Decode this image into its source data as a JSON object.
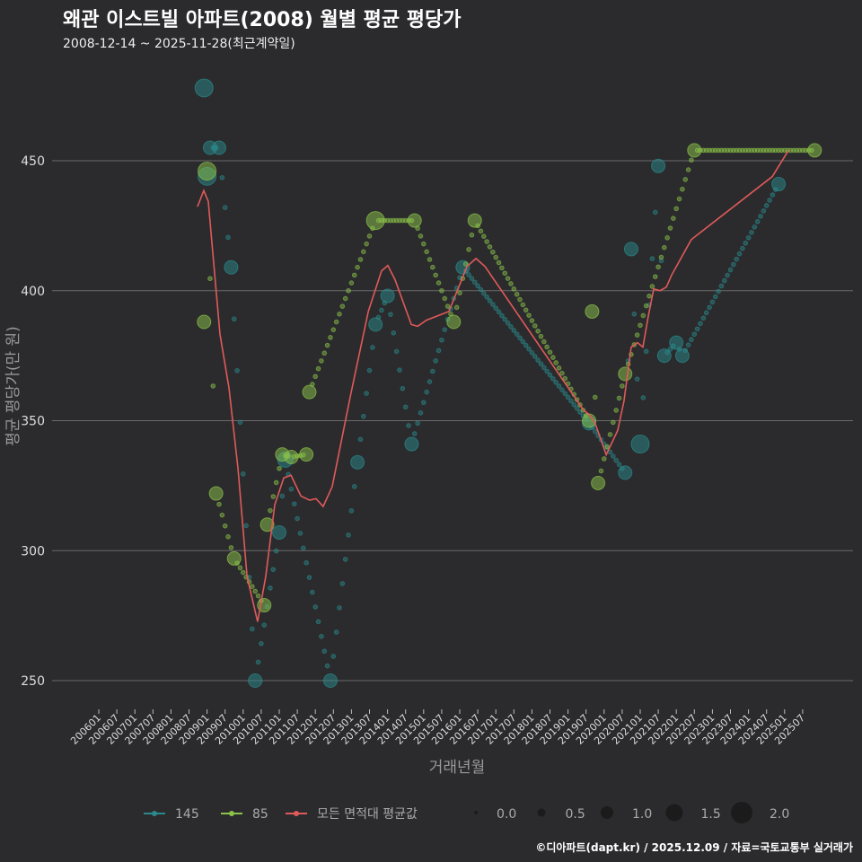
{
  "chart_data": {
    "type": "scatter",
    "title": "왜관 이스트빌 아파트(2008) 월별 평균 평당가",
    "subtitle": "2008-12-14 ~ 2025-11-28(최근계약일)",
    "xlabel": "거래년월",
    "ylabel": "평균 평당가(만 원)",
    "x_unit": "months since 2006-01",
    "ylim": [
      237,
      484
    ],
    "yticks": [
      250,
      300,
      350,
      400,
      450
    ],
    "xticks": [
      "200601",
      "200607",
      "200701",
      "200707",
      "200801",
      "200807",
      "200901",
      "200907",
      "201001",
      "201007",
      "201101",
      "201107",
      "201201",
      "201207",
      "201301",
      "201307",
      "201401",
      "201407",
      "201501",
      "201507",
      "201601",
      "201607",
      "201701",
      "201707",
      "201801",
      "201807",
      "201901",
      "201907",
      "202001",
      "202007",
      "202101",
      "202107",
      "202201",
      "202207",
      "202301",
      "202307",
      "202401",
      "202407",
      "202501",
      "202507"
    ],
    "series": [
      {
        "name": "145",
        "color": "#2a8a8c",
        "points": [
          [
            35,
            478,
            1.5
          ],
          [
            36,
            444,
            1.5
          ],
          [
            37,
            455,
            1.0
          ],
          [
            40,
            455,
            1.0
          ],
          [
            44,
            409,
            1.0
          ],
          [
            52,
            250,
            1.0
          ],
          [
            60,
            307,
            1.0
          ],
          [
            62,
            335,
            1.2
          ],
          [
            77,
            250,
            1.0
          ],
          [
            86,
            334,
            1.0
          ],
          [
            92,
            387,
            1.0
          ],
          [
            96,
            398,
            1.0
          ],
          [
            104,
            341,
            1.0
          ],
          [
            121,
            409,
            1.0
          ],
          [
            163,
            349,
            1.0
          ],
          [
            175,
            330,
            1.0
          ],
          [
            177,
            416,
            1.0
          ],
          [
            180,
            341,
            1.5
          ],
          [
            186,
            448,
            1.0
          ],
          [
            188,
            375,
            1.0
          ],
          [
            192,
            380,
            1.0
          ],
          [
            194,
            375,
            1.0
          ],
          [
            226,
            441,
            1.0
          ]
        ]
      },
      {
        "name": "85",
        "color": "#8bc34a",
        "points": [
          [
            35,
            388,
            1.0
          ],
          [
            36,
            446,
            1.5
          ],
          [
            39,
            322,
            1.0
          ],
          [
            45,
            297,
            1.0
          ],
          [
            55,
            279,
            1.0
          ],
          [
            56,
            310,
            1.0
          ],
          [
            61,
            337,
            1.0
          ],
          [
            64,
            336,
            1.0
          ],
          [
            69,
            337,
            1.0
          ],
          [
            70,
            361,
            1.0
          ],
          [
            92,
            427,
            1.5
          ],
          [
            105,
            427,
            1.0
          ],
          [
            118,
            388,
            1.0
          ],
          [
            125,
            427,
            1.0
          ],
          [
            163,
            350,
            1.0
          ],
          [
            164,
            392,
            1.0
          ],
          [
            166,
            326,
            1.0
          ],
          [
            175,
            368,
            1.0
          ],
          [
            198,
            454,
            1.0
          ],
          [
            238,
            454,
            1.0
          ]
        ]
      },
      {
        "name": "모든 면적대 평균값",
        "color": "#e05a5a",
        "type": "line",
        "points": [
          [
            32.8,
            432.3
          ],
          [
            34.9,
            438.5
          ],
          [
            36.4,
            434.4
          ],
          [
            40.3,
            383.2
          ],
          [
            43.3,
            362.5
          ],
          [
            46.3,
            331.4
          ],
          [
            49.3,
            290
          ],
          [
            52.8,
            272.7
          ],
          [
            55.5,
            290
          ],
          [
            58.5,
            317.6
          ],
          [
            61.5,
            328
          ],
          [
            63.9,
            329
          ],
          [
            67.2,
            321
          ],
          [
            70.1,
            319.4
          ],
          [
            72.2,
            320
          ],
          [
            74.6,
            317
          ],
          [
            77.6,
            324.6
          ],
          [
            83.6,
            359.2
          ],
          [
            89.6,
            392
          ],
          [
            94,
            407.6
          ],
          [
            96.1,
            409.7
          ],
          [
            98.5,
            404.2
          ],
          [
            103.9,
            387
          ],
          [
            106,
            386.3
          ],
          [
            109,
            388.7
          ],
          [
            116.4,
            392
          ],
          [
            122.4,
            409.3
          ],
          [
            125.4,
            412.4
          ],
          [
            128.4,
            409.3
          ],
          [
            161.2,
            354
          ],
          [
            163,
            352.4
          ],
          [
            165,
            349
          ],
          [
            168.7,
            336.9
          ],
          [
            172.5,
            346.2
          ],
          [
            174.6,
            357.5
          ],
          [
            177,
            378.3
          ],
          [
            179.1,
            380
          ],
          [
            180.9,
            378.3
          ],
          [
            182.7,
            390.3
          ],
          [
            184.5,
            400.7
          ],
          [
            186.6,
            400
          ],
          [
            188.7,
            401.4
          ],
          [
            190.4,
            405.9
          ],
          [
            197,
            419.7
          ],
          [
            223.9,
            443.9
          ],
          [
            229.3,
            454
          ]
        ]
      }
    ],
    "size_legend": [
      "0.0",
      "0.5",
      "1.0",
      "1.5",
      "2.0"
    ],
    "size_values": [
      0,
      0.5,
      1.0,
      1.5,
      2.0
    ],
    "legend_placement": "bottom",
    "grid": true
  },
  "footer": "©디아파트(dapt.kr) / 2025.12.09 / 자료=국토교통부 실거래가"
}
